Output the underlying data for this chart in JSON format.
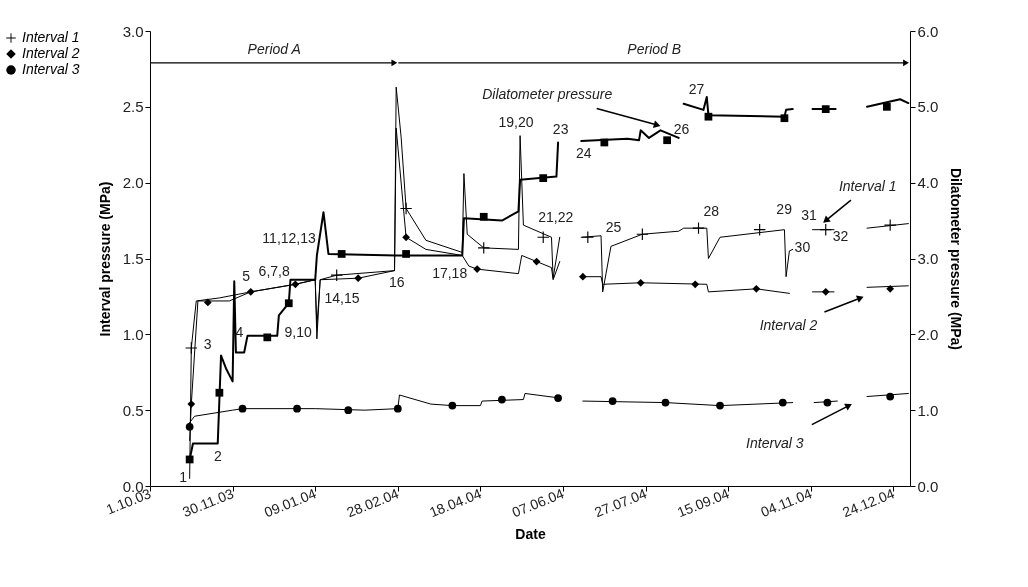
{
  "chart_data": {
    "type": "line",
    "xlabel": "Date",
    "ylabel": "Interval pressure (MPa)",
    "y2label": "Dilatometer pressure (MPa)",
    "xlim": [
      "2003-10-01",
      "2005-01-03"
    ],
    "xticks": [
      {
        "value": "2003-10-01",
        "label": "1.10.03"
      },
      {
        "value": "2003-11-20",
        "label": "30.11.03"
      },
      {
        "value": "2004-01-09",
        "label": "09.01.04"
      },
      {
        "value": "2004-02-28",
        "label": "28.02.04"
      },
      {
        "value": "2004-04-18",
        "label": "18.04.04"
      },
      {
        "value": "2004-06-07",
        "label": "07.06.04"
      },
      {
        "value": "2004-07-27",
        "label": "27.07.04"
      },
      {
        "value": "2004-09-15",
        "label": "15.09.04"
      },
      {
        "value": "2004-11-04",
        "label": "04.11.04"
      },
      {
        "value": "2004-12-24",
        "label": "24.12.04"
      }
    ],
    "ylim": [
      0,
      3
    ],
    "yticks": [
      {
        "value": 0,
        "label": "0.0"
      },
      {
        "value": 0.5,
        "label": "0.5"
      },
      {
        "value": 1,
        "label": "1.0"
      },
      {
        "value": 1.5,
        "label": "1.5"
      },
      {
        "value": 2,
        "label": "2.0"
      },
      {
        "value": 2.5,
        "label": "2.5"
      },
      {
        "value": 3,
        "label": "3.0"
      }
    ],
    "y2lim": [
      0,
      6
    ],
    "y2ticks": [
      {
        "value": 0,
        "label": "0.0"
      },
      {
        "value": 1,
        "label": "1.0"
      },
      {
        "value": 2,
        "label": "2.0"
      },
      {
        "value": 3,
        "label": "3.0"
      },
      {
        "value": 4,
        "label": "4.0"
      },
      {
        "value": 5,
        "label": "5.0"
      },
      {
        "value": 6,
        "label": "6.0"
      }
    ],
    "legend": "left",
    "series": [
      {
        "color": "#000000",
        "x": [
          "2003-10-25",
          "2003-10-26",
          "2003-10-29",
          "2003-11-12",
          "2003-12-01",
          "2003-12-28",
          "2004-01-09",
          "2004-01-10",
          "2004-01-12",
          "2004-01-22",
          "2004-02-26",
          "2004-02-27",
          "2004-03-01",
          "2004-03-04",
          "2004-03-16",
          "2004-04-07",
          "2004-04-08",
          "2004-04-10",
          "2004-04-20",
          "2004-05-11",
          "2004-05-12",
          "2004-05-14",
          "2004-05-31",
          "2004-06-01",
          "2004-06-05",
          "2004-06-11",
          "2004-06-18",
          "2004-06-30",
          "2004-07-01",
          "2004-07-06",
          "2004-07-25",
          "2004-08-16",
          "2004-08-19",
          "2004-09-02",
          "2004-09-03",
          "2004-09-10",
          "2004-10-19",
          "2004-10-20",
          "2004-10-22",
          "2004-10-24",
          "2004-10-30",
          "2004-11-05",
          "2004-11-18",
          "2004-11-28",
          "2004-12-08",
          "2005-01-02"
        ],
        "values": [
          0.05,
          0.91,
          1.22,
          1.24,
          1.28,
          1.33,
          1.36,
          1.05,
          1.36,
          1.39,
          1.42,
          2.63,
          2.3,
          1.83,
          1.62,
          1.54,
          2.06,
          1.66,
          1.57,
          1.56,
          2.31,
          1.72,
          1.64,
          1.37,
          1.64,
          null,
          1.64,
          1.65,
          1.28,
          1.58,
          1.66,
          1.68,
          1.7,
          1.7,
          1.5,
          1.64,
          1.69,
          1.38,
          1.55,
          1.56,
          null,
          1.69,
          1.69,
          null,
          1.7,
          1.73
        ]
      },
      {
        "type": "scatter",
        "name": "Interval 1",
        "color": "#000000",
        "marker": "cross",
        "x": [
          "2003-10-26",
          "2004-01-22",
          "2004-03-04",
          "2004-04-20",
          "2004-05-26",
          "2004-06-22",
          "2004-07-25",
          "2004-08-28",
          "2004-10-04",
          "2004-11-13",
          "2004-12-22"
        ],
        "values": [
          0.91,
          1.39,
          1.83,
          1.57,
          1.64,
          1.64,
          1.66,
          1.7,
          1.69,
          1.69,
          1.72
        ]
      },
      {
        "color": "#000000",
        "x": [
          "2003-10-25",
          "2003-10-26",
          "2003-10-30",
          "2003-11-18",
          "2003-12-01",
          "2003-12-28",
          "2004-01-09",
          "2004-01-10",
          "2004-01-12",
          "2004-02-04",
          "2004-02-26",
          "2004-02-27",
          "2004-03-04",
          "2004-03-16",
          "2004-04-07",
          "2004-04-11",
          "2004-04-16",
          "2004-05-11",
          "2004-05-13",
          "2004-05-22",
          "2004-05-31",
          "2004-06-01",
          "2004-06-05",
          "2004-06-11",
          "2004-06-18",
          "2004-06-30",
          "2004-07-01",
          "2004-07-24",
          "2004-09-02",
          "2004-09-03",
          "2004-10-02",
          "2004-10-22",
          "2004-10-30",
          "2004-11-05",
          "2004-11-18",
          "2004-11-28",
          "2004-12-08",
          "2005-01-02"
        ],
        "values": [
          0.3,
          0.54,
          1.22,
          1.22,
          1.28,
          1.33,
          1.36,
          0.97,
          1.36,
          1.37,
          1.42,
          2.36,
          1.64,
          1.56,
          1.52,
          1.45,
          1.43,
          1.4,
          1.52,
          1.48,
          1.44,
          1.36,
          1.48,
          null,
          1.38,
          1.38,
          1.33,
          1.34,
          1.33,
          1.28,
          1.3,
          1.27,
          null,
          1.28,
          1.28,
          null,
          1.31,
          1.32
        ]
      },
      {
        "type": "scatter",
        "name": "Interval 2",
        "color": "#000000",
        "marker": "diamond",
        "x": [
          "2003-10-26",
          "2003-11-05",
          "2003-12-01",
          "2003-12-28",
          "2004-02-04",
          "2004-03-04",
          "2004-04-16",
          "2004-05-22",
          "2004-06-19",
          "2004-07-24",
          "2004-08-26",
          "2004-10-02",
          "2004-11-13",
          "2004-12-22"
        ],
        "values": [
          0.54,
          1.21,
          1.28,
          1.33,
          1.37,
          1.64,
          1.43,
          1.48,
          1.38,
          1.34,
          1.33,
          1.3,
          1.28,
          1.3
        ]
      },
      {
        "color": "#000000",
        "x": [
          "2003-10-23",
          "2003-10-28",
          "2003-11-20",
          "2003-11-26",
          "2004-01-09",
          "2004-02-08",
          "2004-02-28",
          "2004-02-29",
          "2004-03-19",
          "2004-04-01",
          "2004-04-18",
          "2004-04-19",
          "2004-05-14",
          "2004-05-15",
          "2004-06-05",
          "2004-06-12",
          "2004-06-19",
          "2004-08-08",
          "2004-09-10",
          "2004-10-24",
          "2004-10-30",
          "2004-11-06",
          "2004-11-20",
          "2004-11-29",
          "2004-12-08",
          "2005-01-02"
        ],
        "values": [
          0.39,
          0.46,
          0.5,
          0.51,
          0.51,
          0.5,
          0.51,
          0.6,
          0.54,
          0.53,
          0.53,
          0.56,
          0.57,
          0.61,
          0.58,
          null,
          0.56,
          0.55,
          0.53,
          0.55,
          null,
          0.55,
          0.56,
          null,
          0.59,
          0.61
        ]
      },
      {
        "type": "scatter",
        "name": "Interval 3",
        "color": "#000000",
        "marker": "circle",
        "x": [
          "2003-10-25",
          "2003-11-26",
          "2003-12-29",
          "2004-01-29",
          "2004-02-28",
          "2004-04-01",
          "2004-05-01",
          "2004-06-04",
          "2004-07-07",
          "2004-08-08",
          "2004-09-10",
          "2004-10-18",
          "2004-11-14",
          "2004-12-22"
        ],
        "values": [
          0.39,
          0.51,
          0.51,
          0.5,
          0.51,
          0.53,
          0.57,
          0.58,
          0.56,
          0.55,
          0.53,
          0.55,
          0.55,
          0.59
        ]
      },
      {
        "color": "#000000",
        "axis": "y2",
        "x": [
          "2003-10-25",
          "2003-10-27",
          "2003-11-11",
          "2003-11-13",
          "2003-11-16",
          "2003-11-20",
          "2003-11-21",
          "2003-11-22",
          "2003-11-27",
          "2003-11-29",
          "2003-12-17",
          "2003-12-18",
          "2003-12-24",
          "2003-12-25",
          "2004-01-09",
          "2004-01-10",
          "2004-01-14",
          "2004-01-17",
          "2004-02-27",
          "2004-04-07",
          "2004-04-08",
          "2004-05-01",
          "2004-05-11",
          "2004-05-12",
          "2004-06-03",
          "2004-06-04",
          "2004-06-11",
          "2004-06-18",
          "2004-07-16",
          "2004-07-23",
          "2004-07-24",
          "2004-07-29",
          "2004-08-05",
          "2004-08-16",
          "2004-08-18",
          "2004-08-19",
          "2004-08-31",
          "2004-09-02",
          "2004-09-03",
          "2004-10-19",
          "2004-10-20",
          "2004-10-24",
          "2004-10-30",
          "2004-11-05",
          "2004-11-19",
          "2004-11-28",
          "2004-12-08",
          "2004-12-28",
          "2005-01-02"
        ],
        "values": [
          0.35,
          0.56,
          0.56,
          1.72,
          1.55,
          1.38,
          2.7,
          1.76,
          1.76,
          1.98,
          1.98,
          2.25,
          2.41,
          2.72,
          2.72,
          3.04,
          3.61,
          3.06,
          3.04,
          3.04,
          3.53,
          3.5,
          3.62,
          4.04,
          4.08,
          4.53,
          null,
          4.55,
          4.58,
          4.56,
          4.69,
          4.59,
          4.69,
          4.59,
          null,
          5.04,
          4.96,
          5.13,
          4.89,
          4.87,
          4.96,
          4.97,
          null,
          4.97,
          4.97,
          null,
          5.0,
          5.1,
          5.05
        ]
      },
      {
        "type": "scatter",
        "color": "#000000",
        "marker": "square",
        "axis": "y2",
        "x": [
          "2003-10-25",
          "2003-11-12",
          "2003-12-11",
          "2003-12-24",
          "2004-01-25",
          "2004-03-04",
          "2004-04-20",
          "2004-05-26",
          "2004-07-02",
          "2004-08-09",
          "2004-09-03",
          "2004-10-19",
          "2004-11-13",
          "2004-12-20"
        ],
        "values": [
          0.35,
          1.23,
          1.96,
          2.41,
          3.06,
          3.06,
          3.55,
          4.06,
          4.53,
          4.56,
          4.87,
          4.85,
          4.97,
          5.0
        ]
      }
    ],
    "annotations": [
      "1",
      "2",
      "3",
      "4",
      "5",
      "6,7,8",
      "9,10",
      "11,12,13",
      "14,15",
      "16",
      "17,18",
      "19,20",
      "21,22",
      "23",
      "24",
      "25",
      "26",
      "27",
      "28",
      "29",
      "30",
      "31",
      "32",
      {
        "text": "Dilatometer pressure",
        "x": "2004-08-03",
        "y": 2.38
      },
      {
        "text": "Interval 1",
        "x": "2004-11-13",
        "y": 1.75
      },
      {
        "text": "Interval 2",
        "x": "2004-12-04",
        "y": 1.24
      },
      {
        "text": "Interval 3",
        "x": "2004-11-27",
        "y": 0.53
      },
      "Period A",
      "Period B"
    ]
  }
}
